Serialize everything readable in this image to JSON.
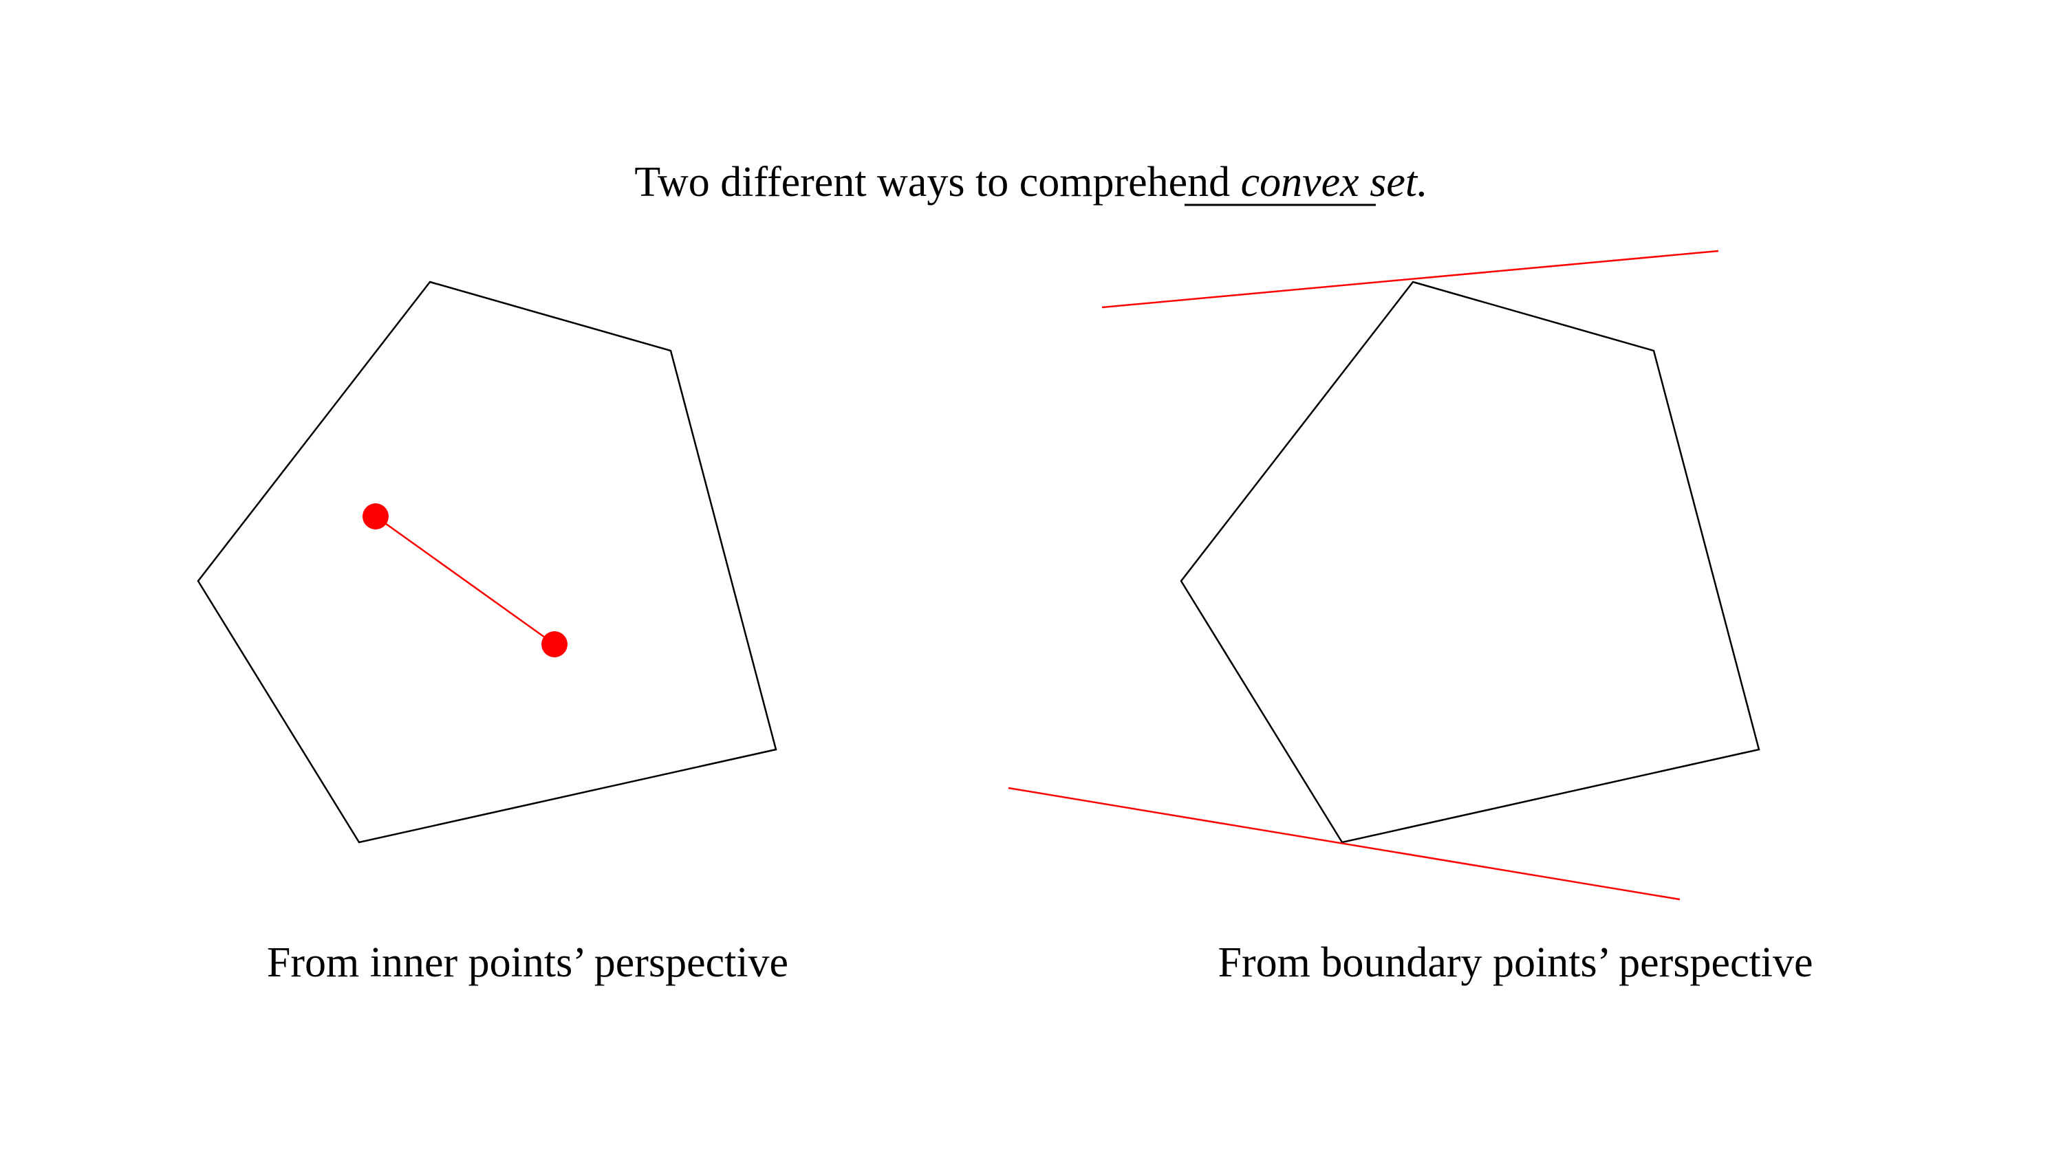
{
  "title": {
    "prefix": "Two different ways to comprehend ",
    "emphasis": "convex set."
  },
  "panels": [
    {
      "caption": "From inner points’ perspective"
    },
    {
      "caption": "From boundary points’ perspective"
    }
  ],
  "colors": {
    "shape_stroke": "#000000",
    "highlight": "#ff0000",
    "background": "#ffffff"
  }
}
